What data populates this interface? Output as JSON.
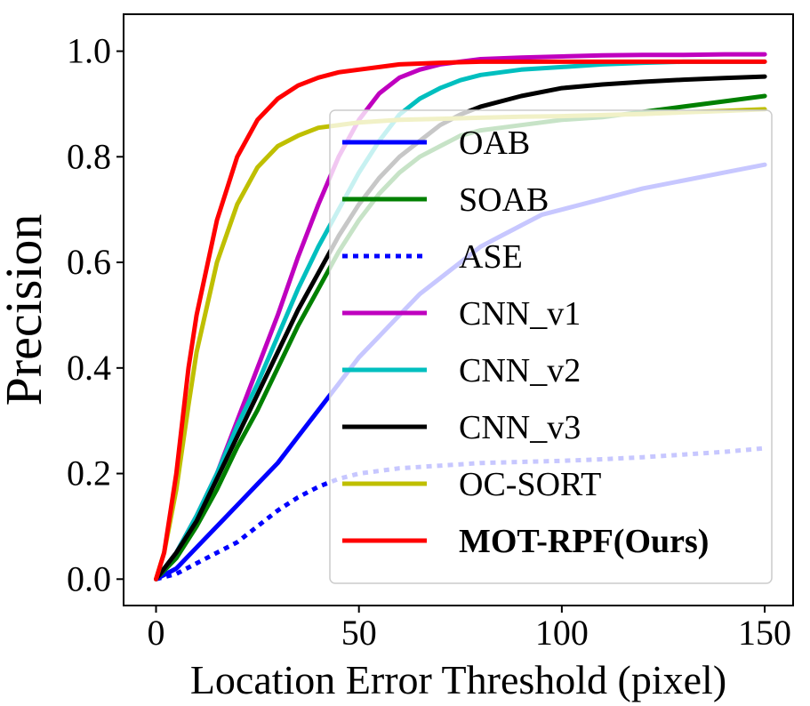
{
  "chart_data": {
    "type": "line",
    "xlabel": "Location Error Threshold (pixel)",
    "ylabel": "Precision",
    "xlim": [
      -8,
      157
    ],
    "ylim": [
      -0.05,
      1.07
    ],
    "xticks": [
      0,
      50,
      100,
      150
    ],
    "xtick_labels": [
      "0",
      "50",
      "100",
      "150"
    ],
    "yticks": [
      0.0,
      0.2,
      0.4,
      0.6,
      0.8,
      1.0
    ],
    "ytick_labels": [
      "0.0",
      "0.2",
      "0.4",
      "0.6",
      "0.8",
      "1.0"
    ],
    "grid": false,
    "legend": {
      "placement": "center-right"
    },
    "series": [
      {
        "name": "OAB",
        "color": "#0000ff",
        "dash": "solid",
        "x": [
          0,
          5,
          10,
          15,
          20,
          25,
          30,
          35,
          40,
          45,
          50,
          55,
          60,
          65,
          70,
          75,
          80,
          85,
          90,
          95,
          100,
          110,
          120,
          130,
          140,
          150
        ],
        "values": [
          0.0,
          0.02,
          0.06,
          0.1,
          0.14,
          0.18,
          0.22,
          0.27,
          0.32,
          0.37,
          0.42,
          0.46,
          0.5,
          0.54,
          0.57,
          0.6,
          0.63,
          0.65,
          0.67,
          0.69,
          0.7,
          0.72,
          0.74,
          0.755,
          0.77,
          0.785
        ]
      },
      {
        "name": "SOAB",
        "color": "#008000",
        "dash": "solid",
        "x": [
          0,
          5,
          10,
          15,
          20,
          25,
          30,
          35,
          40,
          45,
          50,
          55,
          60,
          65,
          70,
          75,
          80,
          90,
          100,
          110,
          120,
          130,
          140,
          150
        ],
        "values": [
          0.0,
          0.04,
          0.1,
          0.17,
          0.25,
          0.32,
          0.4,
          0.48,
          0.55,
          0.62,
          0.68,
          0.73,
          0.77,
          0.8,
          0.82,
          0.84,
          0.85,
          0.86,
          0.87,
          0.875,
          0.885,
          0.895,
          0.905,
          0.915
        ]
      },
      {
        "name": "ASE",
        "color": "#0000ff",
        "dash": "dotted",
        "x": [
          0,
          5,
          10,
          15,
          20,
          25,
          30,
          35,
          40,
          45,
          50,
          55,
          60,
          70,
          80,
          90,
          100,
          110,
          120,
          130,
          140,
          150
        ],
        "values": [
          0.0,
          0.01,
          0.03,
          0.05,
          0.07,
          0.1,
          0.13,
          0.155,
          0.175,
          0.19,
          0.2,
          0.205,
          0.21,
          0.215,
          0.22,
          0.222,
          0.224,
          0.227,
          0.231,
          0.236,
          0.241,
          0.248
        ]
      },
      {
        "name": "CNN_v1",
        "color": "#bf00bf",
        "dash": "solid",
        "x": [
          0,
          5,
          10,
          15,
          20,
          25,
          30,
          35,
          40,
          45,
          50,
          55,
          60,
          65,
          70,
          75,
          80,
          90,
          100,
          110,
          120,
          130,
          140,
          150
        ],
        "values": [
          0.0,
          0.05,
          0.12,
          0.2,
          0.3,
          0.4,
          0.5,
          0.61,
          0.71,
          0.8,
          0.87,
          0.92,
          0.95,
          0.965,
          0.975,
          0.98,
          0.985,
          0.988,
          0.99,
          0.992,
          0.993,
          0.993,
          0.994,
          0.994
        ]
      },
      {
        "name": "CNN_v2",
        "color": "#00bfbf",
        "dash": "solid",
        "x": [
          0,
          5,
          10,
          15,
          20,
          25,
          30,
          35,
          40,
          45,
          50,
          55,
          60,
          65,
          70,
          75,
          80,
          90,
          100,
          110,
          120,
          130,
          140,
          150
        ],
        "values": [
          0.0,
          0.05,
          0.12,
          0.2,
          0.29,
          0.37,
          0.46,
          0.55,
          0.63,
          0.7,
          0.77,
          0.83,
          0.88,
          0.91,
          0.93,
          0.945,
          0.955,
          0.965,
          0.97,
          0.975,
          0.978,
          0.98,
          0.98,
          0.98
        ]
      },
      {
        "name": "CNN_v3",
        "color": "#000000",
        "dash": "solid",
        "x": [
          0,
          5,
          10,
          15,
          20,
          25,
          30,
          35,
          40,
          45,
          50,
          55,
          60,
          65,
          70,
          75,
          80,
          90,
          100,
          110,
          120,
          130,
          140,
          150
        ],
        "values": [
          0.0,
          0.05,
          0.11,
          0.19,
          0.27,
          0.35,
          0.43,
          0.51,
          0.58,
          0.65,
          0.71,
          0.76,
          0.8,
          0.83,
          0.86,
          0.88,
          0.895,
          0.915,
          0.93,
          0.937,
          0.942,
          0.946,
          0.949,
          0.952
        ]
      },
      {
        "name": "OC-SORT",
        "color": "#bfbf00",
        "dash": "solid",
        "x": [
          0,
          2,
          5,
          8,
          10,
          15,
          20,
          25,
          30,
          35,
          40,
          50,
          60,
          70,
          80,
          90,
          100,
          110,
          120,
          130,
          140,
          150
        ],
        "values": [
          0.0,
          0.05,
          0.17,
          0.33,
          0.43,
          0.6,
          0.71,
          0.78,
          0.82,
          0.84,
          0.855,
          0.865,
          0.87,
          0.872,
          0.874,
          0.876,
          0.877,
          0.879,
          0.881,
          0.884,
          0.887,
          0.89
        ]
      },
      {
        "name": "MOT-RPF(Ours)",
        "color": "#ff0000",
        "dash": "solid",
        "x": [
          0,
          2,
          5,
          8,
          10,
          15,
          20,
          25,
          30,
          35,
          40,
          45,
          50,
          55,
          60,
          70,
          80,
          90,
          100,
          110,
          120,
          130,
          140,
          150
        ],
        "values": [
          0.0,
          0.05,
          0.2,
          0.4,
          0.5,
          0.68,
          0.8,
          0.87,
          0.91,
          0.935,
          0.95,
          0.96,
          0.965,
          0.97,
          0.975,
          0.978,
          0.98,
          0.98,
          0.98,
          0.98,
          0.98,
          0.98,
          0.98,
          0.98
        ],
        "bold_label": true
      }
    ]
  }
}
